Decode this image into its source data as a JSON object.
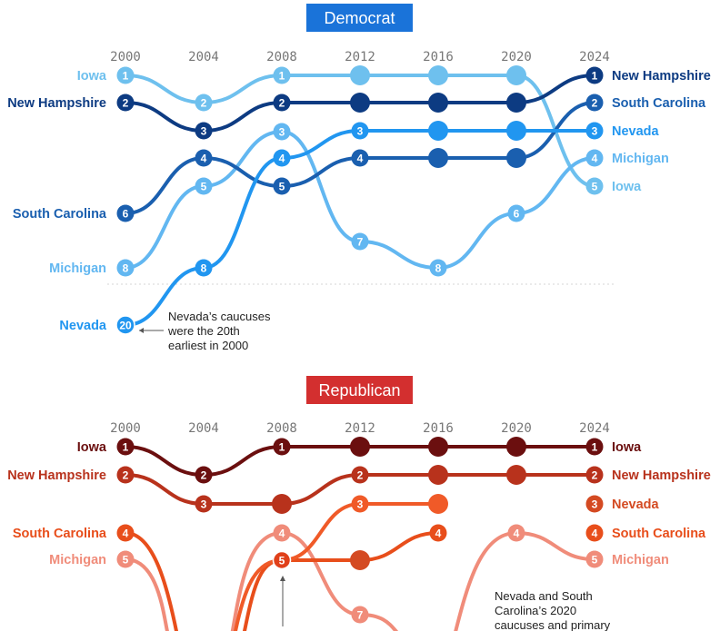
{
  "chart_data": [
    {
      "type": "line",
      "title": "Democrat",
      "title_color": "#1a73d9",
      "x": [
        "2000",
        "2004",
        "2008",
        "2012",
        "2016",
        "2020",
        "2024"
      ],
      "y_inverted": true,
      "series": [
        {
          "name": "Iowa",
          "color": "#6ec0ee",
          "ranks": [
            1,
            2,
            1,
            null,
            null,
            null,
            5
          ]
        },
        {
          "name": "New Hampshire",
          "color": "#0d3b82",
          "ranks": [
            2,
            3,
            2,
            null,
            null,
            null,
            1
          ]
        },
        {
          "name": "South Carolina",
          "color": "#1a5faf",
          "ranks": [
            6,
            4,
            5,
            4,
            null,
            null,
            2
          ]
        },
        {
          "name": "Nevada",
          "color": "#2196f0",
          "ranks": [
            20,
            8,
            4,
            3,
            null,
            null,
            3
          ]
        },
        {
          "name": "Michigan",
          "color": "#62b7f1",
          "ranks": [
            8,
            5,
            3,
            7,
            8,
            6,
            4
          ]
        }
      ],
      "annotation": {
        "lines": [
          "Nevada’s caucuses",
          "were the 20th",
          "earliest in 2000"
        ]
      }
    },
    {
      "type": "line",
      "title": "Republican",
      "title_color": "#d32f2f",
      "x": [
        "2000",
        "2004",
        "2008",
        "2012",
        "2016",
        "2020",
        "2024"
      ],
      "y_inverted": true,
      "series": [
        {
          "name": "Iowa",
          "color": "#6b0f0f",
          "ranks": [
            1,
            2,
            1,
            null,
            null,
            null,
            1
          ]
        },
        {
          "name": "New Hampshire",
          "color": "#b8321c",
          "ranks": [
            2,
            3,
            null,
            2,
            null,
            null,
            2
          ]
        },
        {
          "name": "Nevada",
          "color": "#f05a28",
          "ranks": [
            null,
            null,
            5,
            3,
            null,
            null,
            3
          ]
        },
        {
          "name": "South Carolina",
          "color": "#e84e1b",
          "ranks": [
            4,
            null,
            5,
            null,
            4,
            null,
            4
          ]
        },
        {
          "name": "Michigan",
          "color": "#f08c7a",
          "ranks": [
            5,
            null,
            4,
            7,
            null,
            4,
            5
          ]
        }
      ],
      "annotation": {
        "lines": [
          "Nevada and South",
          "Carolina’s 2020",
          "caucuses and primary"
        ]
      }
    }
  ]
}
